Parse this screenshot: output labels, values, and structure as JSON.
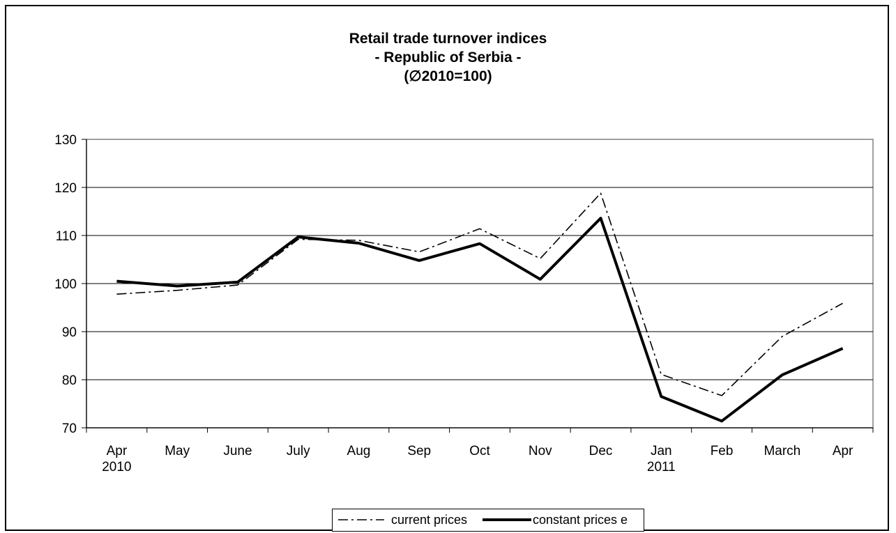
{
  "chart_data": {
    "type": "line",
    "title": [
      "Retail trade turnover indices",
      "- Republic of Serbia -",
      "(∅2010=100)"
    ],
    "xlabel": "",
    "ylabel": "",
    "categories": [
      [
        "Apr",
        "2010"
      ],
      [
        "May"
      ],
      [
        "June"
      ],
      [
        "July"
      ],
      [
        "Aug"
      ],
      [
        "Sep"
      ],
      [
        "Oct"
      ],
      [
        "Nov"
      ],
      [
        "Dec"
      ],
      [
        "Jan",
        "2011"
      ],
      [
        "Feb"
      ],
      [
        "March"
      ],
      [
        "Apr"
      ]
    ],
    "y_ticks": [
      70,
      80,
      90,
      100,
      110,
      120,
      130
    ],
    "ylim": [
      70,
      130
    ],
    "grid": "horizontal",
    "legend_position": "bottom",
    "series": [
      {
        "name": "current prices",
        "style": "dash-dot",
        "color": "#000000",
        "values": [
          97.8,
          98.6,
          99.7,
          109.2,
          109.0,
          106.6,
          111.4,
          105.2,
          118.8,
          81.1,
          76.7,
          89.0,
          95.9
        ]
      },
      {
        "name": "constant prices e",
        "style": "solid-thick",
        "color": "#000000",
        "values": [
          100.5,
          99.5,
          100.3,
          109.7,
          108.4,
          104.8,
          108.3,
          100.9,
          113.6,
          76.5,
          71.4,
          81.0,
          86.5
        ]
      }
    ]
  }
}
